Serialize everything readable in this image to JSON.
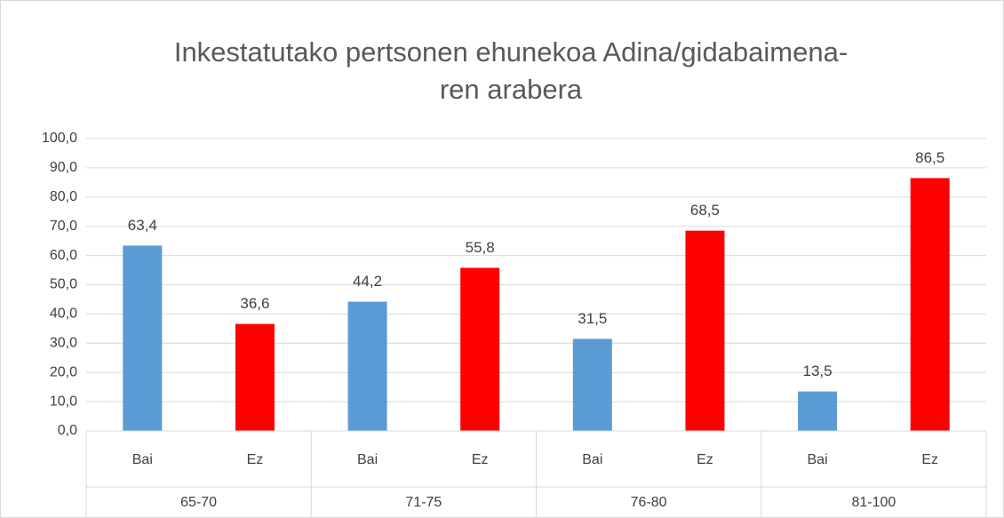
{
  "chart_data": {
    "type": "bar",
    "title": [
      "Inkestatutako pertsonen ehunekoa Adina/gidabaimena-",
      "ren arabera"
    ],
    "categories": [
      "Bai",
      "Ez",
      "Bai",
      "Ez",
      "Bai",
      "Ez",
      "Bai",
      "Ez"
    ],
    "groups": [
      "65-70",
      "71-75",
      "76-80",
      "81-100"
    ],
    "values": [
      63.4,
      36.6,
      44.2,
      55.8,
      31.5,
      68.5,
      13.5,
      86.5
    ],
    "value_labels": [
      "63,4",
      "36,6",
      "44,2",
      "55,8",
      "31,5",
      "68,5",
      "13,5",
      "86,5"
    ],
    "colors": [
      "#5b9bd5",
      "#ff0000",
      "#5b9bd5",
      "#ff0000",
      "#5b9bd5",
      "#ff0000",
      "#5b9bd5",
      "#ff0000"
    ],
    "ylim": [
      0,
      100
    ],
    "yticks": [
      {
        "value": 0,
        "label": "0,0"
      },
      {
        "value": 10,
        "label": "10,0"
      },
      {
        "value": 20,
        "label": "20,0"
      },
      {
        "value": 30,
        "label": "30,0"
      },
      {
        "value": 40,
        "label": "40,0"
      },
      {
        "value": 50,
        "label": "50,0"
      },
      {
        "value": 60,
        "label": "60,0"
      },
      {
        "value": 70,
        "label": "70,0"
      },
      {
        "value": 80,
        "label": "80,0"
      },
      {
        "value": 90,
        "label": "90,0"
      },
      {
        "value": 100,
        "label": "100,0"
      }
    ],
    "grid": true
  }
}
